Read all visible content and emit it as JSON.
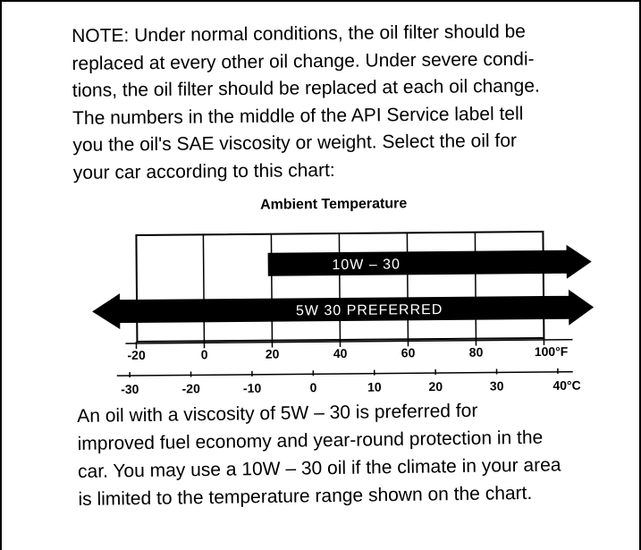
{
  "note": {
    "lines": [
      "NOTE:  Under normal conditions, the oil filter should be",
      "replaced at every other oil change. Under severe condi-",
      "tions, the oil filter should be replaced at each oil change.",
      "The numbers in the middle of the API Service label tell",
      "you the oil's SAE viscosity or weight. Select the oil for",
      "your car according to this chart:"
    ]
  },
  "chart_data": {
    "type": "bar",
    "title": "Ambient Temperature",
    "fahrenheit_ticks": [
      "-20",
      "0",
      "20",
      "40",
      "60",
      "80",
      "100°F"
    ],
    "celsius_ticks": [
      "-30",
      "-20",
      "-10",
      "0",
      "10",
      "20",
      "30",
      "40°C"
    ],
    "x_unit_primary": "°F",
    "xlim_f": [
      -40,
      120
    ],
    "series": [
      {
        "name": "10W – 30",
        "range_f": [
          20,
          120
        ],
        "open_ended": "right"
      },
      {
        "name": "5W   30 PREFERRED",
        "range_f": [
          -40,
          120
        ],
        "open_ended": "both"
      }
    ],
    "colors": {
      "bar": "#000000",
      "bar_text": "#ffffff",
      "background": "#ffffff"
    }
  },
  "bottom": {
    "lines": [
      "An oil with a viscosity of 5W – 30 is preferred for",
      "improved fuel economy and year-round protection in the",
      "car. You may use a 10W – 30 oil if the climate in your area",
      "is limited to the temperature range shown on the chart."
    ]
  }
}
